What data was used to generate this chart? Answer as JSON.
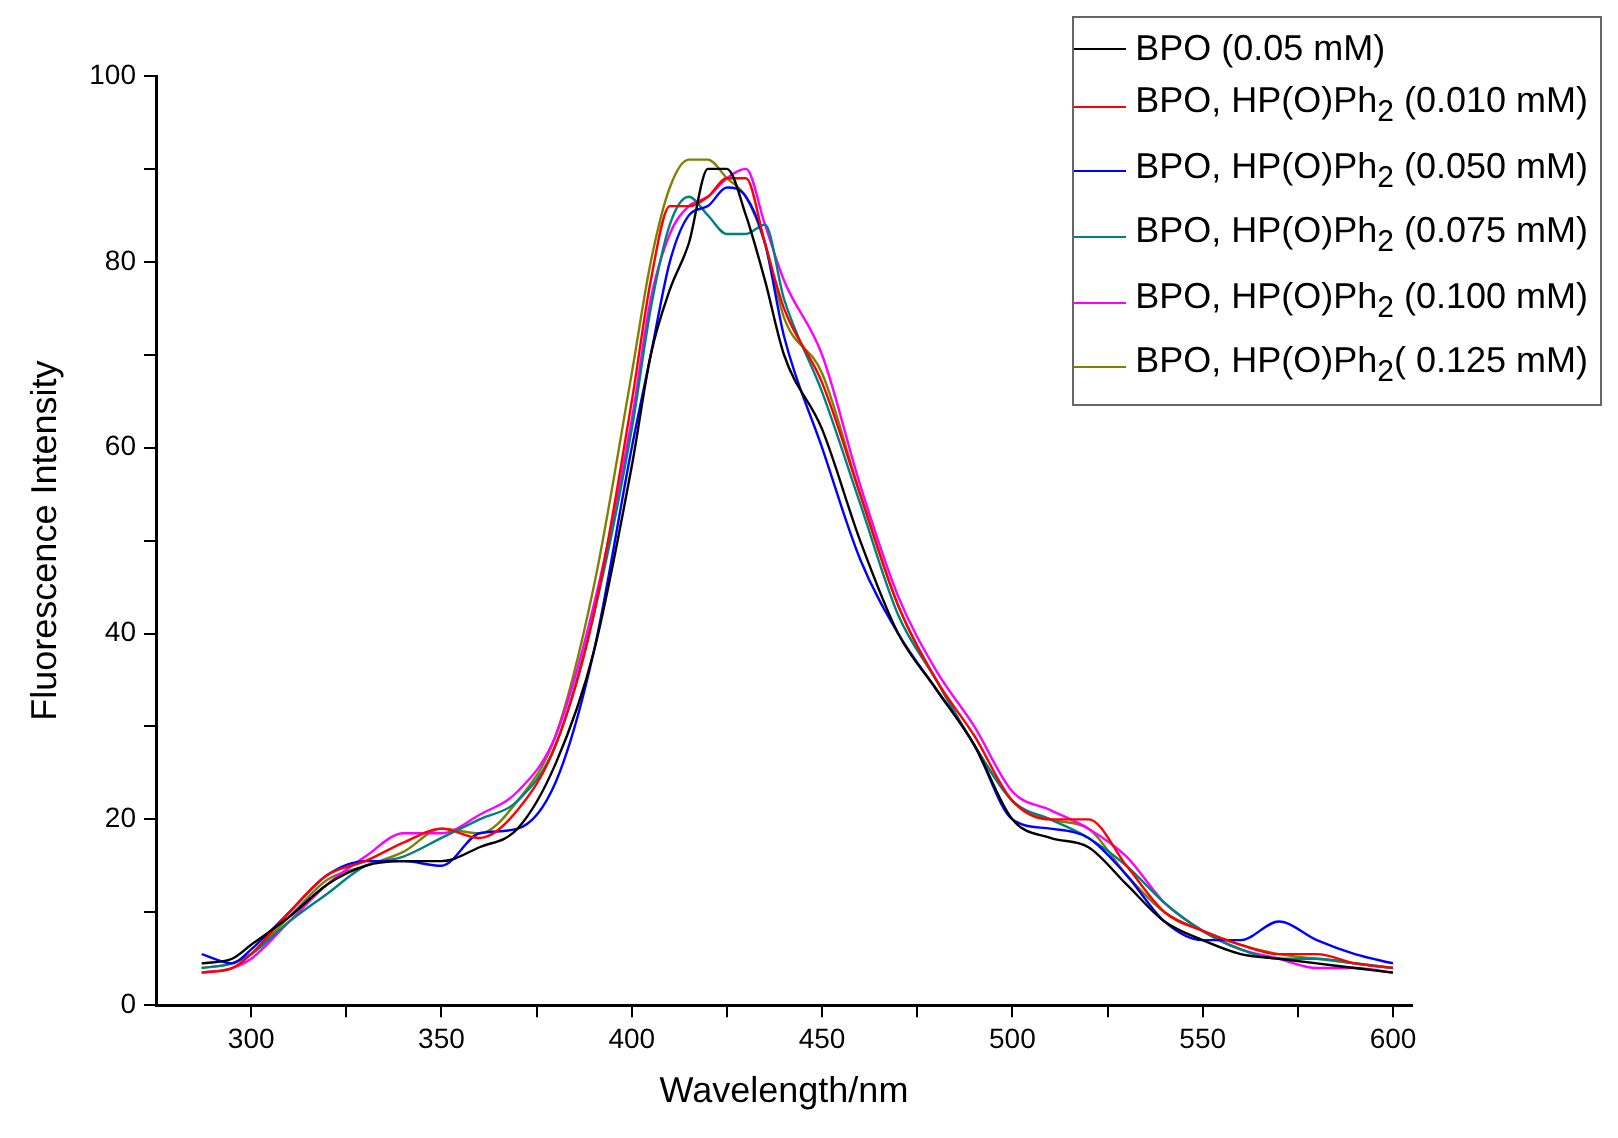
{
  "chart_data": {
    "type": "line",
    "xlabel": "Wavelength/nm",
    "ylabel": "Fluorescence Intensity",
    "legend": "top right",
    "grid": false,
    "marker": "none",
    "line_style": "solid",
    "xlim": [
      275,
      605
    ],
    "ylim": [
      0,
      100
    ],
    "xticks": [
      300,
      {
        "value": 325,
        "label": null
      },
      350,
      {
        "value": 375,
        "label": null
      },
      400,
      {
        "value": 425,
        "label": null
      },
      450,
      {
        "value": 475,
        "label": null
      },
      500,
      {
        "value": 525,
        "label": null
      },
      550,
      {
        "value": 575,
        "label": null
      },
      600
    ],
    "yticks": [
      0,
      {
        "value": 10,
        "label": null
      },
      20,
      {
        "value": 30,
        "label": null
      },
      40,
      {
        "value": 50,
        "label": null
      },
      60,
      {
        "value": 70,
        "label": null
      },
      80,
      {
        "value": 90,
        "label": null
      },
      100
    ],
    "x": [
      287,
      295,
      300,
      310,
      320,
      330,
      340,
      350,
      360,
      370,
      380,
      390,
      400,
      405,
      410,
      415,
      420,
      425,
      430,
      435,
      440,
      450,
      460,
      470,
      480,
      490,
      500,
      510,
      520,
      530,
      540,
      550,
      560,
      570,
      580,
      590,
      600
    ],
    "series": [
      {
        "name": "BPO (0.05 mM)",
        "color": "#000000",
        "values": [
          4.5,
          5,
          6.5,
          9.5,
          13,
          15,
          15.5,
          15.5,
          17,
          19,
          26,
          38,
          58,
          70,
          77,
          82,
          90,
          90,
          85,
          78,
          70,
          62,
          50,
          40,
          34,
          28,
          20,
          18,
          17,
          13,
          9,
          7,
          5.5,
          5,
          4.5,
          4,
          3.5
        ]
      },
      {
        "name": "BPO, HP(O)Ph$_{2}$ (0.010 mM)",
        "color": "#ff0000",
        "values": [
          3.5,
          4,
          5.5,
          10,
          14,
          15.5,
          17.5,
          19,
          18,
          21,
          28,
          42,
          65,
          78,
          86,
          86,
          87,
          89,
          89,
          82,
          75,
          67,
          55,
          43,
          35,
          29,
          22,
          20,
          20,
          15,
          10,
          8,
          6.5,
          5.5,
          5.5,
          4.5,
          4
        ]
      },
      {
        "name": "BPO, HP(O)Ph$_{2}$ (0.050 mM)",
        "color": "#0000ff",
        "values": [
          5.5,
          4.5,
          6,
          10,
          14,
          15.5,
          15.5,
          15,
          18.5,
          19,
          24,
          38,
          60,
          70,
          80,
          85,
          86,
          88,
          87,
          82,
          72,
          60,
          48,
          40,
          34,
          28,
          20,
          19,
          18,
          14,
          9,
          7,
          7,
          9,
          7,
          5.5,
          4.5
        ]
      },
      {
        "name": "BPO, HP(O)Ph$_{2}$ (0.075 mM)",
        "color": "#008080",
        "values": [
          4,
          4.5,
          5.5,
          9,
          12,
          15,
          16,
          18,
          20,
          22,
          28,
          42,
          62,
          75,
          84,
          87,
          85,
          83,
          83,
          84,
          76,
          66,
          54,
          42,
          35,
          28,
          22,
          20,
          18,
          15,
          11,
          8,
          6,
          5,
          5,
          4.5,
          4
        ]
      },
      {
        "name": "BPO, HP(O)Ph$_{2}$ (0.100 mM)",
        "color": "#ff00ff",
        "values": [
          3.5,
          4,
          5,
          9,
          13,
          16,
          18.5,
          18.5,
          20.5,
          23,
          29,
          43,
          63,
          76,
          83,
          86,
          87,
          89,
          90,
          84,
          78,
          70,
          56,
          44,
          36,
          30,
          23,
          21,
          19,
          16,
          11,
          8,
          6,
          5,
          4,
          4,
          3.5
        ]
      },
      {
        "name": "BPO, HP(O)Ph$_{2}$( 0.125 mM)",
        "color": "#808000",
        "values": [
          4,
          4.5,
          5.5,
          9.5,
          13.5,
          15,
          16.5,
          19,
          18.5,
          22,
          29,
          45,
          68,
          80,
          88,
          91,
          91,
          89,
          87,
          82,
          74,
          68,
          55,
          43,
          35,
          28,
          22,
          20,
          19,
          14,
          10,
          8,
          6.5,
          5.5,
          5,
          4.5,
          4
        ]
      }
    ]
  }
}
